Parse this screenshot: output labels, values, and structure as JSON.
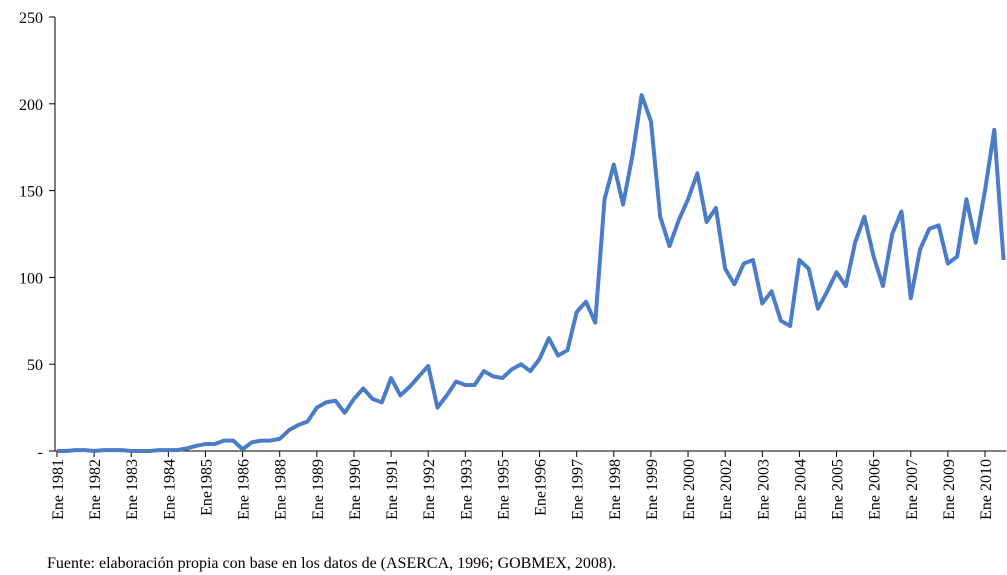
{
  "chart_data": {
    "type": "line",
    "source": "Fuente: elaboración propia con base en los datos de (ASERCA, 1996; GOBMEX, 2008).",
    "categories": [
      "Ene 1981",
      null,
      null,
      null,
      "Ene 1982",
      null,
      null,
      null,
      "Ene 1983",
      null,
      null,
      null,
      "Ene 1984",
      null,
      null,
      null,
      "Ene1985",
      null,
      null,
      null,
      "Ene 1986",
      null,
      null,
      null,
      "Ene 1988",
      null,
      null,
      null,
      "Ene 1989",
      null,
      null,
      null,
      "Ene 1990",
      null,
      null,
      null,
      "Ene 1991",
      null,
      null,
      null,
      "Ene 1992",
      null,
      null,
      null,
      "Ene 1993",
      null,
      null,
      null,
      "Ene 1995",
      null,
      null,
      null,
      "Ene1996",
      null,
      null,
      null,
      "Ene 1997",
      null,
      null,
      null,
      "Ene 1998",
      null,
      null,
      null,
      "Ene 1999",
      null,
      null,
      null,
      "Ene 2000",
      null,
      null,
      null,
      "Ene 2002",
      null,
      null,
      null,
      "Ene 2003",
      null,
      null,
      null,
      "Ene 2004",
      null,
      null,
      null,
      "Ene 2005",
      null,
      null,
      null,
      "Ene 2006",
      null,
      null,
      null,
      "Ene 2007",
      null,
      null,
      null,
      "Ene 2009",
      null,
      null,
      null,
      "Ene 2010",
      null,
      null
    ],
    "values": [
      0,
      0,
      0.5,
      0.5,
      0,
      0.5,
      0.5,
      0.5,
      0,
      0,
      0,
      0.5,
      0.5,
      0.5,
      1.5,
      3,
      4,
      4,
      6,
      6,
      1,
      5,
      6,
      6,
      7,
      12,
      15,
      17,
      25,
      28,
      29,
      22,
      30,
      36,
      30,
      28,
      42,
      32,
      37,
      43,
      49,
      25,
      32,
      40,
      38,
      38,
      46,
      43,
      42,
      47,
      50,
      46,
      53,
      65,
      55,
      58,
      80,
      86,
      74,
      145,
      165,
      142,
      170,
      205,
      190,
      135,
      118,
      133,
      145,
      160,
      132,
      140,
      105,
      96,
      108,
      110,
      85,
      92,
      75,
      72,
      110,
      105,
      82,
      92,
      103,
      95,
      120,
      135,
      112,
      95,
      125,
      138,
      88,
      116,
      128,
      130,
      108,
      112,
      145,
      120,
      150,
      185,
      110
    ],
    "color": "#4a7cc7",
    "ylim": [
      0,
      250
    ],
    "yticks": [
      {
        "value": 0,
        "label": "-"
      },
      50,
      100,
      150,
      200,
      250
    ]
  }
}
